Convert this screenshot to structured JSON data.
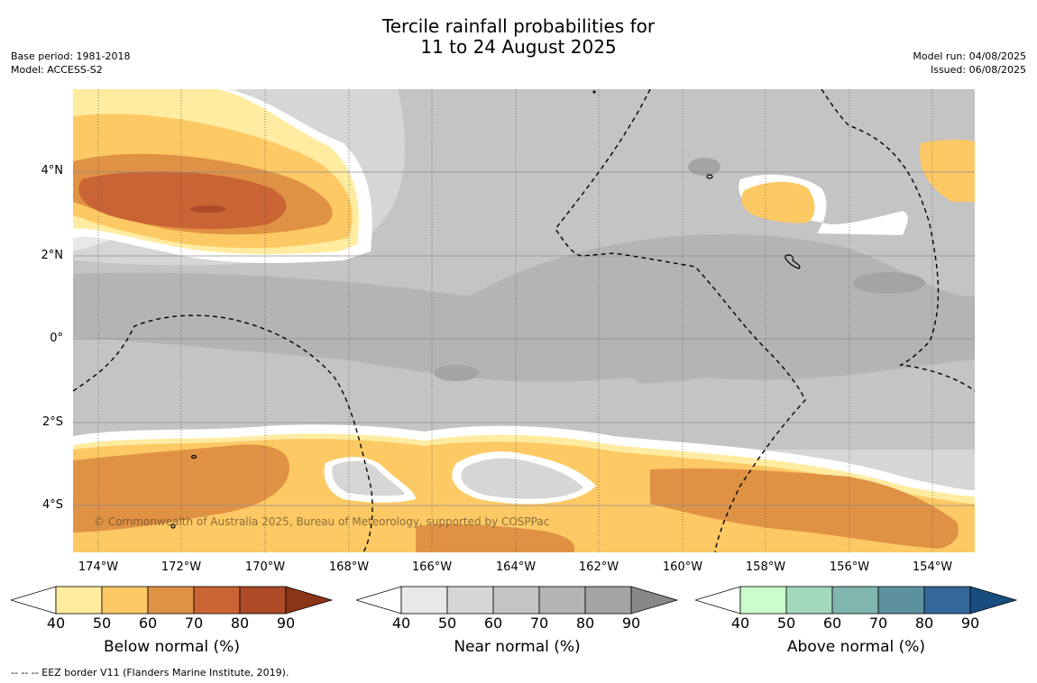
{
  "title": {
    "line1": "Tercile rainfall probabilities for",
    "line2": "11 to 24 August 2025"
  },
  "meta_left": {
    "base_period": "Base period: 1981-2018",
    "model": "Model: ACCESS-S2"
  },
  "meta_right": {
    "model_run": "Model run: 04/08/2025",
    "issued": "Issued: 06/08/2025"
  },
  "map": {
    "lat_labels": [
      "4°N",
      "2°N",
      "0°",
      "2°S",
      "4°S"
    ],
    "lon_labels": [
      "174°W",
      "172°W",
      "170°W",
      "168°W",
      "166°W",
      "164°W",
      "162°W",
      "160°W",
      "158°W",
      "156°W",
      "154°W"
    ],
    "copyright": "© Commonwealth of Australia 2025, Bureau of Meteorology, supported by COSPPac",
    "colors": {
      "below": [
        "#ffeca0",
        "#fdc964",
        "#e09244",
        "#ca6434",
        "#ad4a27",
        "#8c3418"
      ],
      "near": [
        "#e8e8e8",
        "#d6d6d6",
        "#c4c4c4",
        "#b4b4b4",
        "#a4a4a4",
        "#888888"
      ],
      "above": [
        "#c9fbcb",
        "#a2d9bd",
        "#80b5b0",
        "#5c92a0",
        "#336899",
        "#184d80"
      ]
    }
  },
  "colorbars": [
    {
      "key": "below",
      "label": "Below normal (%)",
      "ticks": [
        "40",
        "50",
        "60",
        "70",
        "80",
        "90"
      ]
    },
    {
      "key": "near",
      "label": "Near normal (%)",
      "ticks": [
        "40",
        "50",
        "60",
        "70",
        "80",
        "90"
      ]
    },
    {
      "key": "above",
      "label": "Above normal (%)",
      "ticks": [
        "40",
        "50",
        "60",
        "70",
        "80",
        "90"
      ]
    }
  ],
  "footnote": "--  --  -- EEZ border V11 (Flanders Marine Institute, 2019)."
}
